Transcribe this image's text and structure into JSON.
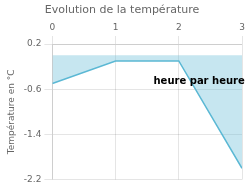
{
  "chart_data": {
    "type": "line",
    "title": "Evolution de la température",
    "ylabel": "Température en °C",
    "x": [
      0,
      1,
      2,
      3
    ],
    "values": [
      -0.5,
      -0.1,
      -0.1,
      -2.0
    ],
    "color": "#5bb8d4",
    "xlim": [
      0,
      3
    ],
    "ylim": [
      -2.2,
      0.2
    ],
    "xticks": [
      0,
      1,
      2,
      3
    ],
    "yticks": [
      0.2,
      -0.6,
      -1.4,
      -2.2
    ],
    "grid": true,
    "annotations": [
      {
        "text": "heure par heure",
        "x": 1.6,
        "y": -0.38
      }
    ]
  }
}
